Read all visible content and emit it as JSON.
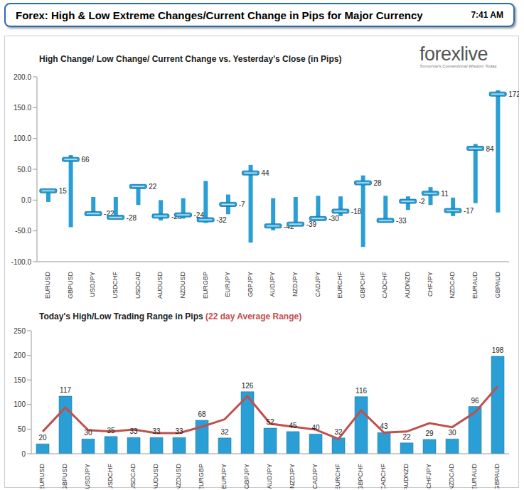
{
  "header": {
    "title": "Forex: High & Low Extreme Changes/Current Change in Pips for Major Currency",
    "time": "7:41 AM"
  },
  "logo": {
    "name": "forexlive",
    "tagline": "Tomorrow's Conventional Wisdom Today."
  },
  "chart_data": [
    {
      "type": "range",
      "title": "High Change/ Low Change/ Current Change vs. Yesterday's Close (in Pips)",
      "categories": [
        "EURUSD",
        "GBPUSD",
        "USDJPY",
        "USDCHF",
        "USDCAD",
        "AUDUSD",
        "NZDUSD",
        "EURGBP",
        "EURJPY",
        "GBPJPY",
        "AUDJPY",
        "NZDJPY",
        "CADJPY",
        "EURCHF",
        "GBPCHF",
        "CADCHF",
        "AUDNZD",
        "CHFJPY",
        "NZDCAD",
        "EURAUD",
        "GBPAUD"
      ],
      "high": [
        17,
        73,
        5,
        5,
        25,
        0,
        3,
        31,
        9,
        57,
        3,
        5,
        7,
        6,
        40,
        7,
        6,
        21,
        4,
        91,
        178
      ],
      "low": [
        -3,
        -44,
        -25,
        -30,
        -8,
        -33,
        -30,
        -37,
        -23,
        -69,
        -49,
        -40,
        -33,
        -26,
        -76,
        -36,
        -16,
        -8,
        -26,
        -5,
        -20
      ],
      "values": [
        15,
        66,
        -22,
        -28,
        22,
        -26,
        -24,
        -32,
        -7,
        44,
        -42,
        -39,
        -30,
        -18,
        28,
        -33,
        -2,
        11,
        -17,
        84,
        172
      ],
      "color": "#2a9fd6",
      "data_labels": true,
      "grid": false,
      "ylim": [
        -100,
        200
      ],
      "yticks": [
        {
          "value": -100,
          "label": "-100.0"
        },
        {
          "value": -50,
          "label": "-50.0"
        },
        {
          "value": 0,
          "label": "0.0"
        },
        {
          "value": 50,
          "label": "50.0"
        },
        {
          "value": 100,
          "label": "100.0"
        },
        {
          "value": 150,
          "label": "150.0"
        },
        {
          "value": 200,
          "label": "200.0"
        }
      ]
    },
    {
      "type": "bar",
      "title": "Today's High/Low Trading Range in Pips",
      "subtitle": "(22 day Average Range)",
      "categories": [
        "EURUSD",
        "GBPUSD",
        "USDJPY",
        "USDCHF",
        "USDCAD",
        "AUDUSD",
        "NZDUSD",
        "EURGBP",
        "EURJPY",
        "GBPJPY",
        "AUDJPY",
        "NZDJPY",
        "CADJPY",
        "EURCHF",
        "GBPCHF",
        "CADCHF",
        "AUDNZD",
        "CHFJPY",
        "NZDCAD",
        "EURAUD",
        "GBPAUD"
      ],
      "series": [
        {
          "type": "bar",
          "color": "#2a9fd6",
          "data_labels": true,
          "values": [
            20,
            117,
            30,
            35,
            33,
            33,
            33,
            68,
            32,
            126,
            52,
            45,
            40,
            32,
            116,
            43,
            22,
            29,
            30,
            96,
            198
          ]
        },
        {
          "type": "line",
          "color": "#c0504d",
          "values": [
            45,
            94,
            48,
            45,
            49,
            42,
            42,
            55,
            70,
            117,
            61,
            55,
            49,
            30,
            88,
            43,
            45,
            62,
            54,
            84,
            137
          ]
        }
      ],
      "grid": false,
      "ylim": [
        0,
        250
      ],
      "yticks": [
        0,
        50,
        100,
        150,
        200,
        250
      ]
    }
  ]
}
